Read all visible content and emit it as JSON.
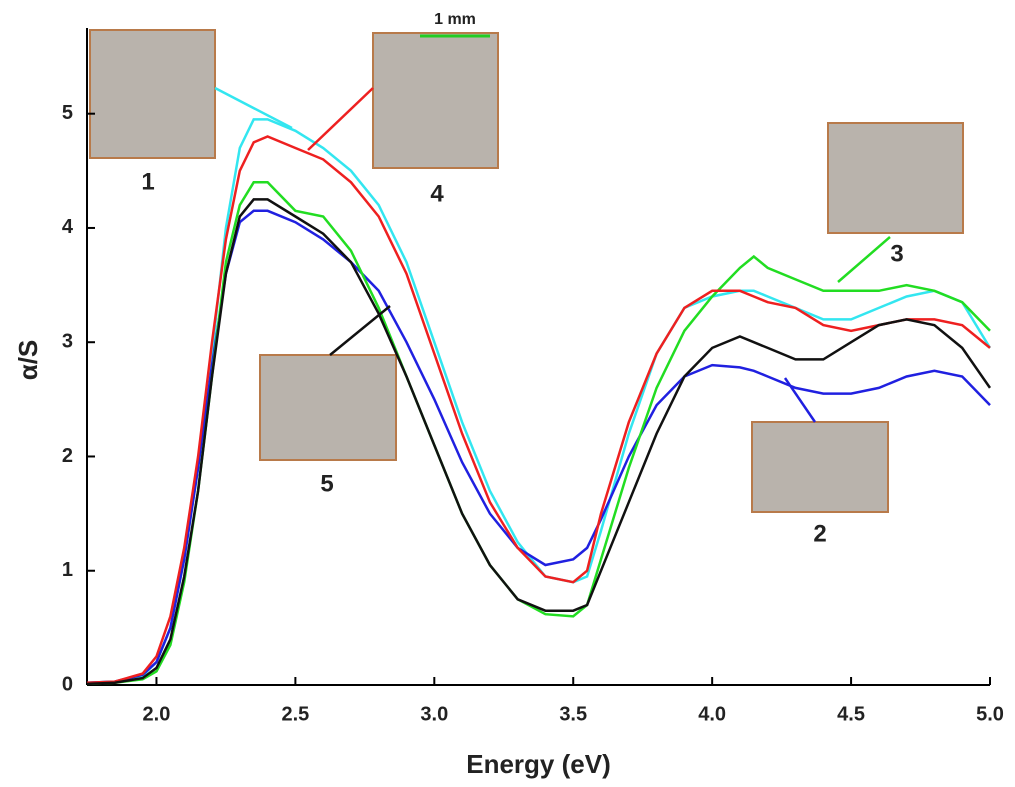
{
  "chart_data": {
    "type": "line",
    "x_label": "Energy (eV)",
    "y_label": "α/S",
    "x": [
      1.75,
      1.85,
      1.95,
      2.0,
      2.05,
      2.1,
      2.15,
      2.2,
      2.25,
      2.3,
      2.35,
      2.4,
      2.5,
      2.6,
      2.7,
      2.8,
      2.9,
      3.0,
      3.1,
      3.2,
      3.3,
      3.4,
      3.5,
      3.55,
      3.6,
      3.7,
      3.8,
      3.9,
      4.0,
      4.1,
      4.15,
      4.2,
      4.3,
      4.4,
      4.5,
      4.6,
      4.7,
      4.8,
      4.9,
      5.0
    ],
    "series": [
      {
        "name": "1",
        "color": "#33e6f0",
        "values": [
          0.02,
          0.03,
          0.08,
          0.2,
          0.5,
          1.1,
          1.9,
          2.9,
          4.0,
          4.7,
          4.95,
          4.95,
          4.85,
          4.7,
          4.5,
          4.2,
          3.7,
          3.0,
          2.3,
          1.7,
          1.25,
          0.95,
          0.9,
          0.95,
          1.35,
          2.2,
          2.9,
          3.3,
          3.4,
          3.45,
          3.45,
          3.4,
          3.3,
          3.2,
          3.2,
          3.3,
          3.4,
          3.45,
          3.35,
          2.95
        ]
      },
      {
        "name": "2",
        "color": "#2020e0",
        "values": [
          0.02,
          0.03,
          0.09,
          0.2,
          0.5,
          1.1,
          1.9,
          2.8,
          3.6,
          4.05,
          4.15,
          4.15,
          4.05,
          3.9,
          3.7,
          3.45,
          3.0,
          2.5,
          1.95,
          1.5,
          1.2,
          1.05,
          1.1,
          1.2,
          1.45,
          2.0,
          2.45,
          2.7,
          2.8,
          2.78,
          2.75,
          2.7,
          2.6,
          2.55,
          2.55,
          2.6,
          2.7,
          2.75,
          2.7,
          2.45
        ]
      },
      {
        "name": "3",
        "color": "#22dd22",
        "values": [
          0.01,
          0.02,
          0.05,
          0.12,
          0.35,
          0.9,
          1.7,
          2.7,
          3.7,
          4.2,
          4.4,
          4.4,
          4.15,
          4.1,
          3.8,
          3.3,
          2.7,
          2.1,
          1.5,
          1.05,
          0.75,
          0.62,
          0.6,
          0.7,
          1.1,
          1.9,
          2.6,
          3.1,
          3.4,
          3.65,
          3.75,
          3.65,
          3.55,
          3.45,
          3.45,
          3.45,
          3.5,
          3.45,
          3.35,
          3.1
        ]
      },
      {
        "name": "4",
        "color": "#ee2020",
        "values": [
          0.02,
          0.03,
          0.1,
          0.25,
          0.6,
          1.2,
          2.0,
          3.0,
          3.9,
          4.5,
          4.75,
          4.8,
          4.7,
          4.6,
          4.4,
          4.1,
          3.6,
          2.9,
          2.2,
          1.6,
          1.2,
          0.95,
          0.9,
          1.0,
          1.5,
          2.3,
          2.9,
          3.3,
          3.45,
          3.45,
          3.4,
          3.35,
          3.3,
          3.15,
          3.1,
          3.15,
          3.2,
          3.2,
          3.15,
          2.95
        ]
      },
      {
        "name": "5",
        "color": "#111111",
        "values": [
          0.01,
          0.02,
          0.06,
          0.15,
          0.4,
          0.95,
          1.7,
          2.7,
          3.6,
          4.1,
          4.25,
          4.25,
          4.1,
          3.95,
          3.7,
          3.25,
          2.7,
          2.1,
          1.5,
          1.05,
          0.75,
          0.65,
          0.65,
          0.7,
          1.0,
          1.6,
          2.2,
          2.7,
          2.95,
          3.05,
          3.0,
          2.95,
          2.85,
          2.85,
          3.0,
          3.15,
          3.2,
          3.15,
          2.95,
          2.6
        ]
      }
    ],
    "annotations": [
      "1 mm"
    ],
    "xlim": [
      1.75,
      5.0
    ],
    "ylim": [
      0,
      5.75
    ],
    "xticks": [
      {
        "value": 2,
        "label": "2.0"
      },
      {
        "value": 2.5,
        "label": "2.5"
      },
      {
        "value": 3,
        "label": "3.0"
      },
      {
        "value": 3.5,
        "label": "3.5"
      },
      {
        "value": 4,
        "label": "4.0"
      },
      {
        "value": 4.5,
        "label": "4.5"
      },
      {
        "value": 5,
        "label": "5.0"
      }
    ],
    "yticks": [
      0,
      1,
      2,
      3,
      4,
      5
    ]
  }
}
